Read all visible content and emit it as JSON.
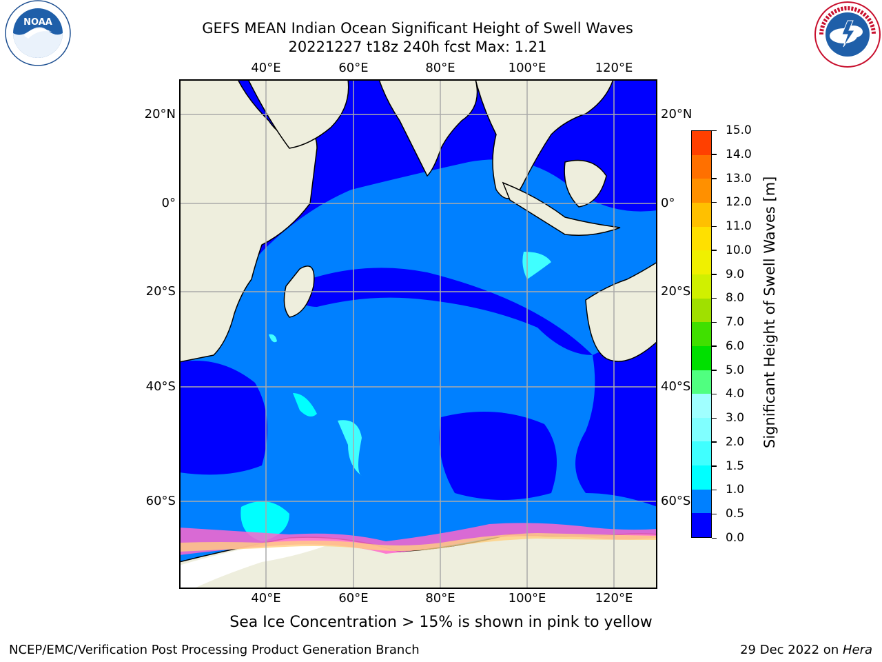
{
  "title": {
    "line1": "GEFS MEAN Indian Ocean Significant Height of Swell Waves",
    "line2": "20221227 t18z 240h fcst   Max: 1.21"
  },
  "logos": {
    "left": {
      "icon": "noaa-logo",
      "text": "NOAA"
    },
    "right": {
      "icon": "nws-logo",
      "text": "NATIONAL WEATHER SERVICE"
    }
  },
  "map": {
    "lon_labels": [
      "40°E",
      "60°E",
      "80°E",
      "100°E",
      "120°E"
    ],
    "lat_labels_left": [
      "20°N",
      "0°",
      "20°S",
      "40°S",
      "60°S"
    ],
    "lat_labels_right": [
      "20°N",
      "0°",
      "20°S",
      "40°S",
      "60°S"
    ],
    "colors": {
      "ocean_low": "#0000ff",
      "ocean_mid": "#0080ff",
      "swell_1_0": "#00ffff",
      "land": "#eeeedd",
      "ice": "#ff66cc",
      "grid": "#aaaaaa"
    }
  },
  "colorbar": {
    "label": "Significant Height of Swell Waves [m]",
    "ticks": [
      "0.0",
      "0.5",
      "1.0",
      "1.5",
      "2.0",
      "3.0",
      "4.0",
      "5.0",
      "6.0",
      "7.0",
      "8.0",
      "9.0",
      "10.0",
      "11.0",
      "12.0",
      "13.0",
      "14.0",
      "15.0"
    ],
    "colors": [
      "#0000ff",
      "#0080ff",
      "#00ffff",
      "#40ffff",
      "#80ffff",
      "#a0ffff",
      "#50ff80",
      "#00e000",
      "#40e000",
      "#a0e000",
      "#d0f000",
      "#f0f000",
      "#ffe000",
      "#ffc000",
      "#ff9000",
      "#ff7000",
      "#ff4000",
      "#ff0000"
    ]
  },
  "note": "Sea Ice Concentration > 15% is shown in pink to yellow",
  "footer": {
    "left": "NCEP/EMC/Verification Post Processing Product Generation Branch",
    "right_prefix": "29 Dec 2022 on ",
    "right_italic": "Hera"
  }
}
